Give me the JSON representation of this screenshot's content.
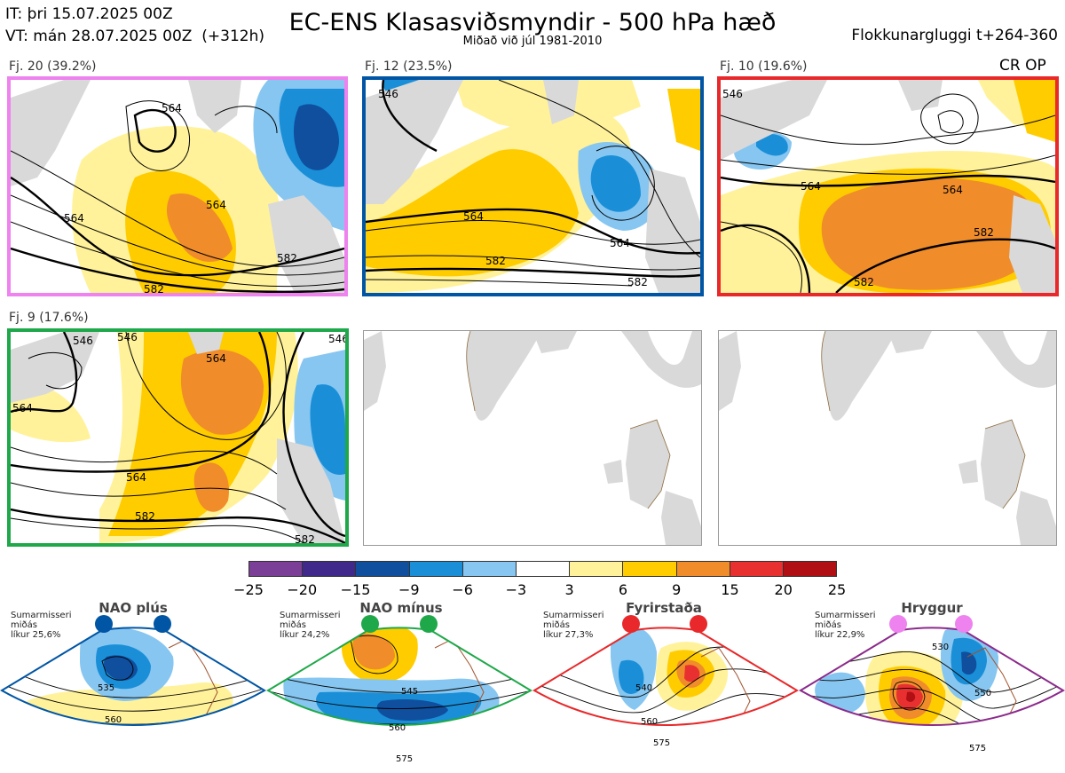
{
  "header": {
    "line1": "IT: þri 15.07.2025 00Z",
    "line2": "VT: mán 28.07.2025 00Z  (+312h)",
    "title": "EC-ENS Klasasviðsmyndir - 500 hPa hæð",
    "subtitle": "Miðað við júl 1981-2010",
    "window": "Flokkunargluggi t+264-360",
    "crop": "CR OP"
  },
  "clusters": [
    {
      "label": "Fj. 20 (39.2%)",
      "border": "#ee82ee",
      "contours": [
        "564",
        "564",
        "564",
        "582",
        "582"
      ]
    },
    {
      "label": "Fj. 12 (23.5%)",
      "border": "#0055a4",
      "contours": [
        "546",
        "564",
        "564",
        "582",
        "582"
      ]
    },
    {
      "label": "Fj. 10 (19.6%)",
      "border": "#e8282a",
      "contours": [
        "546",
        "564",
        "564",
        "582",
        "582"
      ]
    },
    {
      "label": "Fj. 9 (17.6%)",
      "border": "#1fa84a",
      "contours": [
        "546",
        "546",
        "546",
        "564",
        "564",
        "564",
        "582",
        "582"
      ]
    }
  ],
  "colorbar": {
    "colors": [
      "#7b3f98",
      "#3f2a8c",
      "#0f4f9e",
      "#1a8fd8",
      "#87c6f0",
      "#ffffff",
      "#fff29a",
      "#ffcc00",
      "#f08c2a",
      "#e83030",
      "#b00f14"
    ],
    "ticks": [
      "−25",
      "−20",
      "−15",
      "−9",
      "−6",
      "−3",
      "3",
      "6",
      "9",
      "15",
      "20",
      "25"
    ]
  },
  "regimes": [
    {
      "title": "NAO plús",
      "info": [
        "Sumarmisseri",
        "miðás",
        "líkur 25,6%"
      ],
      "color": "#0055a4",
      "contours": [
        "535",
        "560"
      ]
    },
    {
      "title": "NAO mínus",
      "info": [
        "Sumarmisseri",
        "miðás",
        "líkur 24,2%"
      ],
      "color": "#1fa84a",
      "contours": [
        "545",
        "560",
        "575"
      ]
    },
    {
      "title": "Fyrirstaða",
      "info": [
        "Sumarmisseri",
        "miðás",
        "líkur 27,3%"
      ],
      "color": "#e8282a",
      "contours": [
        "540",
        "560",
        "575"
      ]
    },
    {
      "title": "Hryggur",
      "info": [
        "Sumarmisseri",
        "miðás",
        "líkur 22,9%"
      ],
      "color": "#ee82ee",
      "contours": [
        "530",
        "550",
        "575"
      ]
    }
  ]
}
